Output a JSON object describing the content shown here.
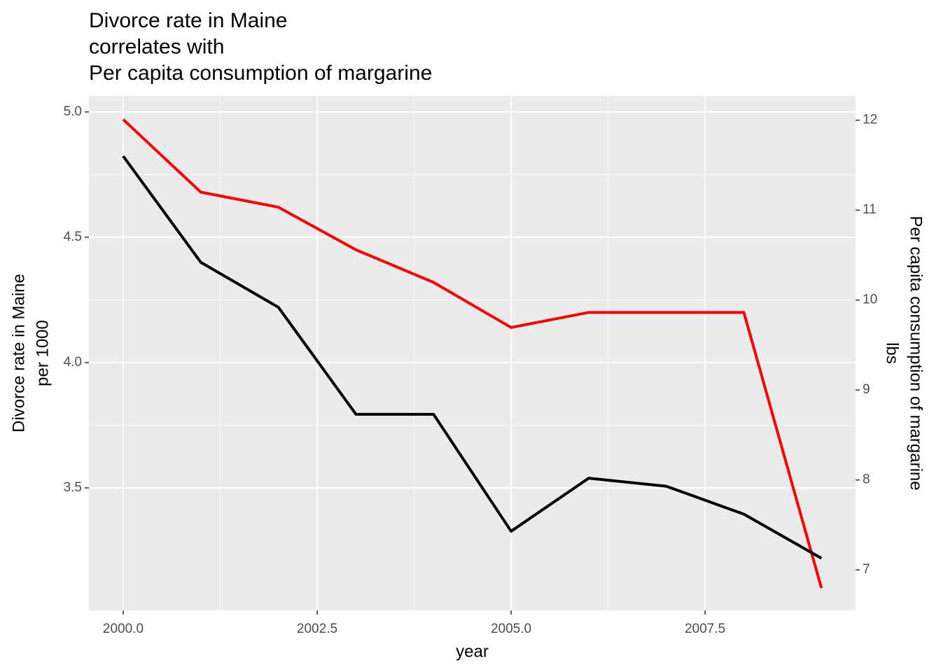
{
  "chart_data": {
    "type": "line",
    "title": [
      "Divorce rate in Maine",
      "correlates with",
      "Per capita consumption of margarine"
    ],
    "xlabel": "year",
    "ylabel": [
      "Divorce rate in Maine",
      "per 1000"
    ],
    "y2label": [
      "Per capita consumption of margarine",
      "lbs"
    ],
    "x": [
      2000,
      2001,
      2002,
      2003,
      2004,
      2005,
      2006,
      2007,
      2008,
      2009
    ],
    "series": [
      {
        "name": "Divorce rate in Maine",
        "color": "#ff0000",
        "values": [
          4.97,
          4.68,
          4.62,
          4.45,
          4.32,
          4.14,
          4.2,
          4.2,
          4.2,
          3.1
        ]
      },
      {
        "name": "Per capita consumption of margarine",
        "color": "#000000",
        "axis": "y2",
        "values": [
          11.6,
          10.42,
          9.92,
          8.73,
          8.73,
          7.43,
          8.02,
          7.93,
          7.62,
          7.13
        ]
      }
    ],
    "xlim": [
      1999.558,
      2009.44
    ],
    "xticks": [
      {
        "value": 2000,
        "label": "2000.0"
      },
      {
        "value": 2002.5,
        "label": "2002.5"
      },
      {
        "value": 2005,
        "label": "2005.0"
      },
      {
        "value": 2007.5,
        "label": "2007.5"
      }
    ],
    "ylim": [
      3.011,
      5.064
    ],
    "yticks": [
      3.5,
      {
        "value": 4,
        "label": "4.0"
      },
      4.5,
      {
        "value": 5,
        "label": "5.0"
      }
    ],
    "y2lim": [
      6.55,
      12.27
    ],
    "y2ticks": [
      7,
      8,
      9,
      10,
      11,
      12
    ],
    "grid": true
  }
}
